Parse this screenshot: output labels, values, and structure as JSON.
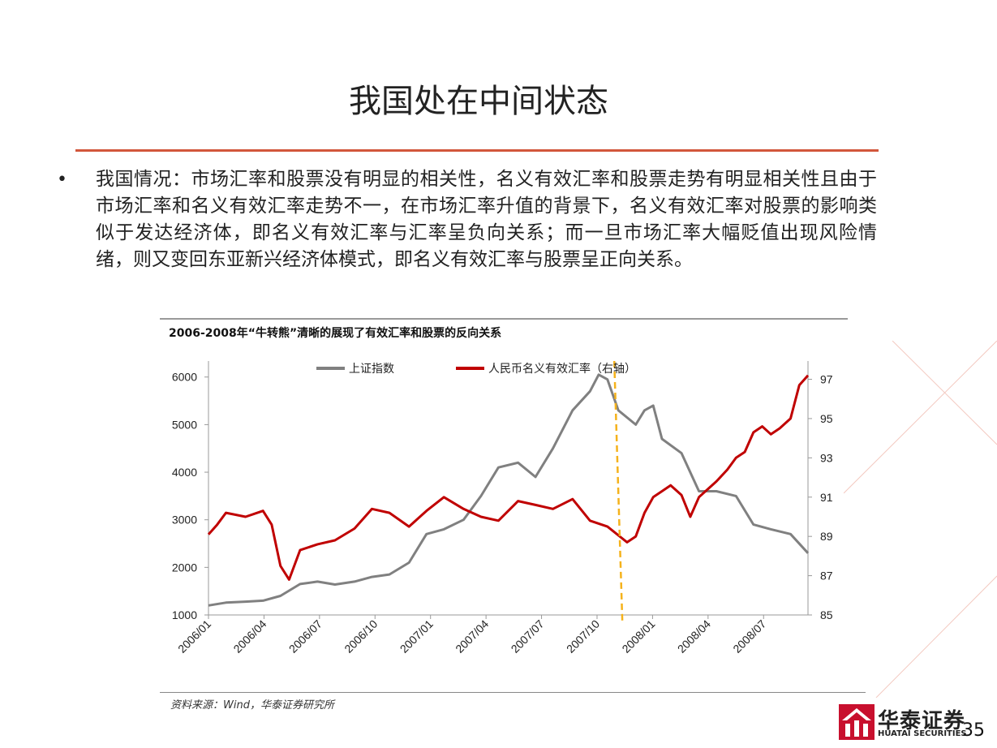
{
  "slide": {
    "title": "我国处在中间状态",
    "bullet_text": "我国情况：市场汇率和股票没有明显的相关性，名义有效汇率和股票走势有明显相关性且由于市场汇率和名义有效汇率走势不一，在市场汇率升值的背景下，名义有效汇率对股票的影响类似于发达经济体，即名义有效汇率与汇率呈负向关系；而一旦市场汇率大幅贬值出现风险情绪，则又变回东亚新兴经济体模式，即名义有效汇率与股票呈正向关系。",
    "bullet_symbol": "•",
    "page_number": "35"
  },
  "source_note": "资料来源：Wind，华泰证券研究所",
  "logo": {
    "name_cn": "华泰证券",
    "name_en": "HUATAI SECURITIES",
    "color": "#c8102e"
  },
  "colors": {
    "accent_rule": "#d2563b",
    "sse": "#808080",
    "neer": "#c00000",
    "marker": "#f5b21b"
  },
  "chart_data": {
    "type": "line",
    "title": "2006-2008年“牛转熊”清晰的展现了有效汇率和股票的反向关系",
    "x_labels": [
      "2006/01",
      "2006/04",
      "2006/07",
      "2006/10",
      "2007/01",
      "2007/04",
      "2007/07",
      "2007/10",
      "2008/01",
      "2008/04",
      "2008/07"
    ],
    "x_range": [
      2006.0,
      2008.75
    ],
    "y_left": {
      "ticks": [
        1000,
        2000,
        3000,
        4000,
        5000,
        6000
      ],
      "range": [
        1000,
        6200
      ]
    },
    "y_right": {
      "ticks": [
        85,
        87,
        89,
        91,
        93,
        95,
        97
      ],
      "range": [
        85,
        97.6
      ]
    },
    "marker_line_x": 2007.88,
    "series": [
      {
        "name": "上证指数",
        "axis": "left",
        "color": "#808080",
        "points": [
          [
            2006.0,
            1200
          ],
          [
            2006.08,
            1260
          ],
          [
            2006.17,
            1280
          ],
          [
            2006.25,
            1300
          ],
          [
            2006.33,
            1400
          ],
          [
            2006.42,
            1650
          ],
          [
            2006.5,
            1700
          ],
          [
            2006.58,
            1640
          ],
          [
            2006.67,
            1700
          ],
          [
            2006.75,
            1800
          ],
          [
            2006.83,
            1850
          ],
          [
            2006.92,
            2100
          ],
          [
            2007.0,
            2700
          ],
          [
            2007.08,
            2800
          ],
          [
            2007.17,
            3000
          ],
          [
            2007.25,
            3500
          ],
          [
            2007.33,
            4100
          ],
          [
            2007.42,
            4200
          ],
          [
            2007.5,
            3900
          ],
          [
            2007.58,
            4500
          ],
          [
            2007.67,
            5300
          ],
          [
            2007.75,
            5700
          ],
          [
            2007.79,
            6050
          ],
          [
            2007.83,
            5950
          ],
          [
            2007.88,
            5300
          ],
          [
            2007.96,
            5000
          ],
          [
            2008.0,
            5300
          ],
          [
            2008.04,
            5400
          ],
          [
            2008.08,
            4700
          ],
          [
            2008.17,
            4400
          ],
          [
            2008.25,
            3600
          ],
          [
            2008.33,
            3600
          ],
          [
            2008.42,
            3500
          ],
          [
            2008.5,
            2900
          ],
          [
            2008.58,
            2800
          ],
          [
            2008.67,
            2700
          ],
          [
            2008.75,
            2300
          ]
        ]
      },
      {
        "name": "人民币名义有效汇率（右轴）",
        "axis": "right",
        "color": "#c00000",
        "points": [
          [
            2006.0,
            89.1
          ],
          [
            2006.04,
            89.6
          ],
          [
            2006.08,
            90.2
          ],
          [
            2006.17,
            90.0
          ],
          [
            2006.25,
            90.3
          ],
          [
            2006.29,
            89.6
          ],
          [
            2006.33,
            87.5
          ],
          [
            2006.37,
            86.8
          ],
          [
            2006.42,
            88.3
          ],
          [
            2006.5,
            88.6
          ],
          [
            2006.58,
            88.8
          ],
          [
            2006.67,
            89.4
          ],
          [
            2006.75,
            90.4
          ],
          [
            2006.83,
            90.2
          ],
          [
            2006.92,
            89.5
          ],
          [
            2007.0,
            90.3
          ],
          [
            2007.08,
            91.0
          ],
          [
            2007.17,
            90.4
          ],
          [
            2007.25,
            90.0
          ],
          [
            2007.33,
            89.8
          ],
          [
            2007.42,
            90.8
          ],
          [
            2007.5,
            90.6
          ],
          [
            2007.58,
            90.4
          ],
          [
            2007.67,
            90.9
          ],
          [
            2007.75,
            89.8
          ],
          [
            2007.83,
            89.5
          ],
          [
            2007.92,
            88.7
          ],
          [
            2007.96,
            89.0
          ],
          [
            2008.0,
            90.2
          ],
          [
            2008.04,
            91.0
          ],
          [
            2008.08,
            91.3
          ],
          [
            2008.12,
            91.6
          ],
          [
            2008.17,
            91.1
          ],
          [
            2008.21,
            90.0
          ],
          [
            2008.25,
            91.0
          ],
          [
            2008.33,
            91.8
          ],
          [
            2008.38,
            92.4
          ],
          [
            2008.42,
            93.0
          ],
          [
            2008.46,
            93.3
          ],
          [
            2008.5,
            94.3
          ],
          [
            2008.54,
            94.6
          ],
          [
            2008.58,
            94.2
          ],
          [
            2008.62,
            94.5
          ],
          [
            2008.67,
            95.0
          ],
          [
            2008.71,
            96.7
          ],
          [
            2008.75,
            97.2
          ]
        ]
      }
    ]
  }
}
